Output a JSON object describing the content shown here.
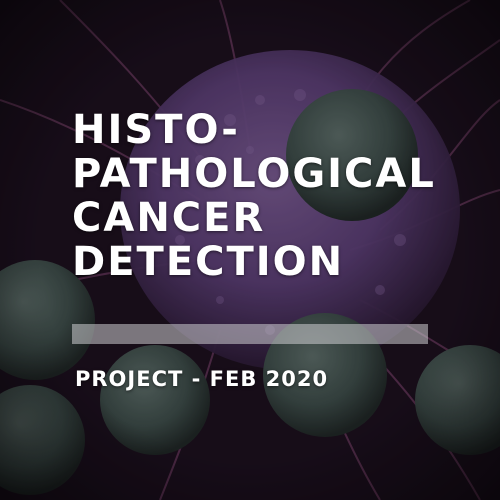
{
  "title": {
    "lines": [
      "HISTO-",
      "PATHOLOGICAL",
      "CANCER",
      "DETECTION"
    ]
  },
  "subtitle": "PROJECT - FEB 2020",
  "background": {
    "description_icon": "cancer-cell-microscopy-image",
    "colors": {
      "dark": "#1a0f1c",
      "cell_purple": "#5b3f76",
      "cell_highlight": "#7a5c93",
      "lymphocyte_green": "#3b4b47",
      "filament": "#6a3a5e"
    }
  },
  "colors": {
    "text": "#ffffff",
    "divider": "#cdcdd2"
  }
}
